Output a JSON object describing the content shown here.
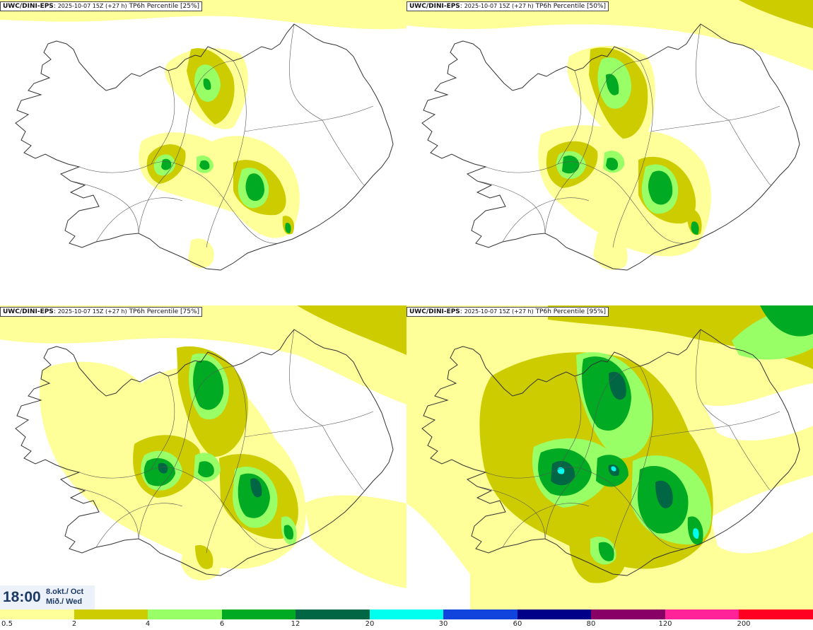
{
  "panels": [
    {
      "source": "UWC/DINI-EPS",
      "run": "2025-10-07 15Z (+27 h)",
      "label": "TP6h Percentile [25%]"
    },
    {
      "source": "UWC/DINI-EPS",
      "run": "2025-10-07 15Z (+27 h)",
      "label": "TP6h Percentile [50%]"
    },
    {
      "source": "UWC/DINI-EPS",
      "run": "2025-10-07 15Z (+27 h)",
      "label": "TP6h Percentile [75%]"
    },
    {
      "source": "UWC/DINI-EPS",
      "run": "2025-10-07 15Z (+27 h)",
      "label": "TP6h Percentile [95%]"
    }
  ],
  "valid_time": {
    "time": "18:00",
    "date": "8.okt./ Oct",
    "weekday": "Mið./ Wed"
  },
  "legend": {
    "ticks": [
      "0.5",
      "2",
      "4",
      "6",
      "12",
      "20",
      "30",
      "60",
      "80",
      "120",
      "200"
    ],
    "colors": [
      "#ffff99",
      "#cccc00",
      "#99ff66",
      "#00aa22",
      "#006644",
      "#00ffee",
      "#1144dd",
      "#000088",
      "#880066",
      "#ff2299",
      "#ff0022"
    ]
  },
  "colors": {
    "land_outline": "#333333",
    "road": "#555555",
    "level1": "#ffff99",
    "level2": "#cccc00",
    "level3": "#99ff66",
    "level4": "#00aa22",
    "level5": "#006644",
    "level6": "#00ffee"
  }
}
